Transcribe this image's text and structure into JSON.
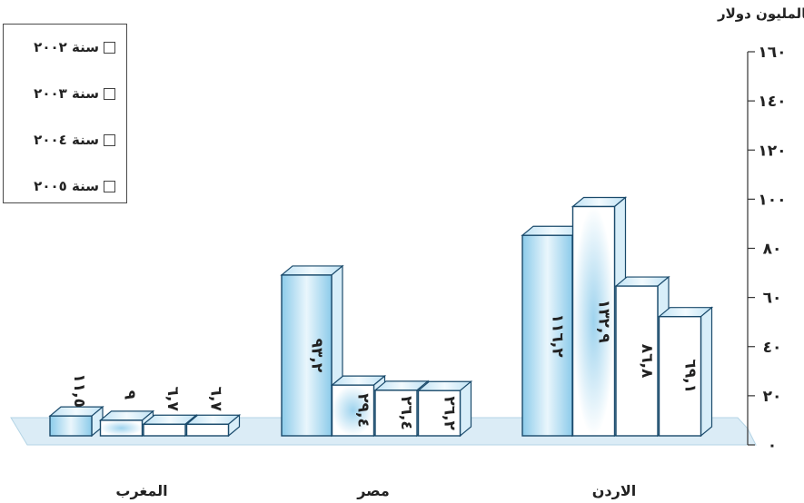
{
  "chart_data": {
    "type": "bar",
    "ylabel": "بالمليون دولار",
    "ylim": [
      0,
      160
    ],
    "y_ticks": [
      "٠",
      "٢٠",
      "٤٠",
      "٦٠",
      "٨٠",
      "١٠٠",
      "١٢٠",
      "١٤٠",
      "١٦٠"
    ],
    "y_tick_values": [
      0,
      20,
      40,
      60,
      80,
      100,
      120,
      140,
      160
    ],
    "categories": [
      "المغرب",
      "مصر",
      "الاردن"
    ],
    "series": [
      {
        "name": "سنة ٢٠٠٢",
        "values": [
          11.5,
          93.2,
          116.2
        ],
        "labels": [
          "١١,٥",
          "٩٣,٢",
          "١١٦,٢"
        ]
      },
      {
        "name": "سنة ٢٠٠٣",
        "values": [
          9,
          29.4,
          132.9
        ],
        "labels": [
          "٩",
          "٢٩,٤",
          "١٣٢,٩"
        ]
      },
      {
        "name": "سنة ٢٠٠٤",
        "values": [
          6.7,
          26.4,
          86.8
        ],
        "labels": [
          "٦,٧",
          "٢٦,٤",
          "٨٦,٨"
        ]
      },
      {
        "name": "سنة ٢٠٠٥",
        "values": [
          6.7,
          26.2,
          69.1
        ],
        "labels": [
          "٦,٧",
          "٢٦,٢",
          "٦٩,١"
        ]
      }
    ],
    "legend_position": "top-left",
    "grid": false,
    "colors": {
      "axis": "#333333",
      "bar_edge": "#1a4a6b",
      "bar_fill": "#ffffff",
      "bar_highlight": "#6fbde3",
      "floor": "#cfe6f3"
    }
  }
}
